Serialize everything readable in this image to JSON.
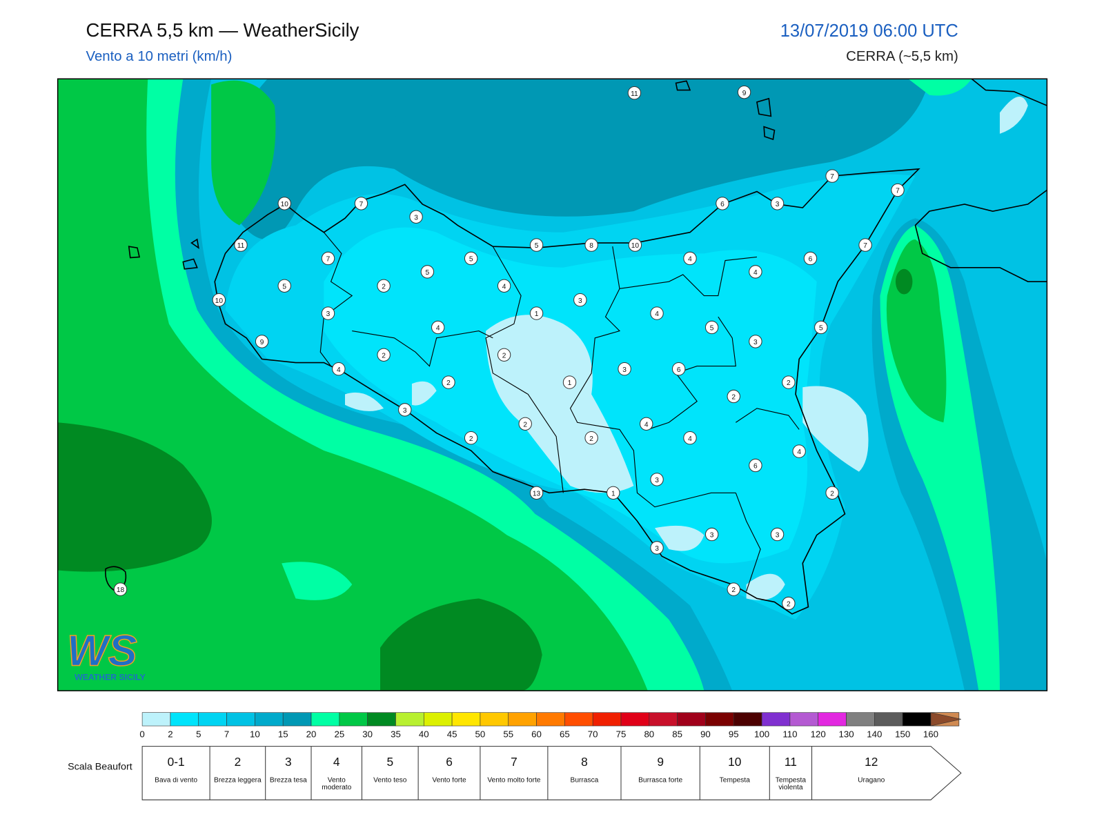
{
  "header": {
    "title": "CERRA 5,5 km — WeatherSicily",
    "subtitle": "Vento a 10 metri (km/h)",
    "date": "13/07/2019 06:00 UTC",
    "model": "CERRA (~5,5 km)"
  },
  "map": {
    "stations": [
      11,
      9,
      7,
      7,
      6,
      3,
      7,
      10,
      3,
      11,
      5,
      8,
      10,
      7,
      7,
      5,
      4,
      6,
      4,
      5,
      5,
      2,
      4,
      10,
      3,
      3,
      1,
      4,
      4,
      5,
      5,
      9,
      3,
      2,
      2,
      4,
      3,
      6,
      1,
      2,
      2,
      2,
      3,
      2,
      4,
      2,
      2,
      4,
      4,
      6,
      3,
      13,
      1,
      2,
      3,
      3,
      3,
      2,
      2,
      18
    ]
  },
  "logo": {
    "mark": "WS",
    "text": "WEATHER SICILY"
  },
  "scale": {
    "ticks": [
      0,
      2,
      5,
      7,
      10,
      15,
      20,
      25,
      30,
      35,
      40,
      45,
      50,
      55,
      60,
      65,
      70,
      75,
      80,
      85,
      90,
      95,
      100,
      110,
      120,
      130,
      140,
      150,
      160
    ],
    "colors": [
      "#bdf2fb",
      "#00e4fb",
      "#00d4f2",
      "#00c2e4",
      "#00aacb",
      "#0098b4",
      "#00ffa4",
      "#00c846",
      "#008a22",
      "#b8f030",
      "#dcf000",
      "#ffe600",
      "#ffc800",
      "#ffa200",
      "#ff7a00",
      "#ff4e00",
      "#f02000",
      "#e00018",
      "#c8102a",
      "#a0001a",
      "#7a0000",
      "#4c0000",
      "#8030d0",
      "#b45ad2",
      "#e228e0",
      "#808080",
      "#5c5c5c",
      "#000000",
      "#8c4a2a",
      "#d08a52"
    ]
  },
  "beaufort": {
    "title": "Scala Beaufort",
    "levels": [
      {
        "force": "0-1",
        "label": "Bava di vento"
      },
      {
        "force": 2,
        "label": "Brezza leggera"
      },
      {
        "force": 3,
        "label": "Brezza tesa"
      },
      {
        "force": 4,
        "label": "Vento moderato"
      },
      {
        "force": 5,
        "label": "Vento teso"
      },
      {
        "force": 6,
        "label": "Vento forte"
      },
      {
        "force": 7,
        "label": "Vento molto forte"
      },
      {
        "force": 8,
        "label": "Burrasca"
      },
      {
        "force": 9,
        "label": "Burrasca forte"
      },
      {
        "force": 10,
        "label": "Tempesta"
      },
      {
        "force": 11,
        "label": "Tempesta violenta"
      },
      {
        "force": 12,
        "label": "Uragano"
      }
    ]
  }
}
